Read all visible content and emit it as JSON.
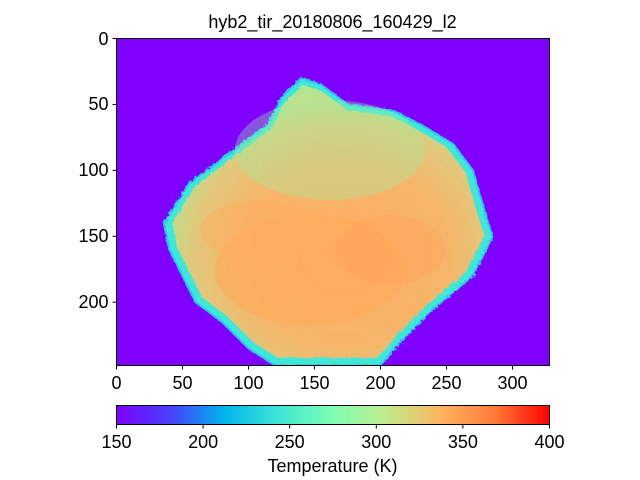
{
  "title": "hyb2_tir_20180806_160429_l2",
  "image_axes": {
    "xlim": [
      0,
      328
    ],
    "ylim": [
      248,
      0
    ],
    "x_ticks": [
      "0",
      "50",
      "100",
      "150",
      "200",
      "250",
      "300"
    ],
    "y_ticks": [
      "0",
      "50",
      "100",
      "150",
      "200"
    ],
    "background_color": "#7f00ff",
    "colormap": "rainbow"
  },
  "colorbar": {
    "label": "Temperature (K)",
    "range": [
      150,
      400
    ],
    "ticks": [
      "150",
      "200",
      "250",
      "300",
      "350",
      "400"
    ],
    "colormap": "rainbow"
  },
  "chart_data": {
    "type": "heatmap",
    "title": "hyb2_tir_20180806_160429_l2",
    "xlabel": "",
    "ylabel": "",
    "xlim": [
      0,
      328
    ],
    "ylim": [
      248,
      0
    ],
    "colorbar_label": "Temperature (K)",
    "value_range": [
      150,
      400
    ],
    "background_value_K": 150,
    "object_outline": [
      [
        140,
        30
      ],
      [
        155,
        35
      ],
      [
        175,
        50
      ],
      [
        210,
        55
      ],
      [
        230,
        65
      ],
      [
        255,
        80
      ],
      [
        270,
        100
      ],
      [
        280,
        135
      ],
      [
        285,
        150
      ],
      [
        270,
        180
      ],
      [
        240,
        205
      ],
      [
        215,
        230
      ],
      [
        200,
        248
      ],
      [
        120,
        248
      ],
      [
        100,
        235
      ],
      [
        80,
        215
      ],
      [
        60,
        200
      ],
      [
        40,
        160
      ],
      [
        36,
        140
      ],
      [
        55,
        110
      ],
      [
        75,
        95
      ],
      [
        95,
        80
      ],
      [
        115,
        65
      ],
      [
        125,
        45
      ]
    ],
    "object_mean_temperature_K": 335,
    "limb_temperature_K": 275
  }
}
